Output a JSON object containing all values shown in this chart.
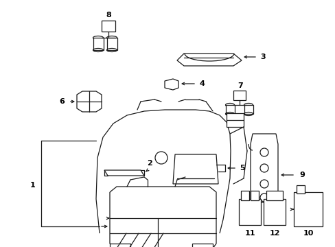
{
  "bg_color": "#ffffff",
  "line_color": "#1a1a1a",
  "text_color": "#000000",
  "figsize": [
    4.89,
    3.6
  ],
  "dpi": 100
}
